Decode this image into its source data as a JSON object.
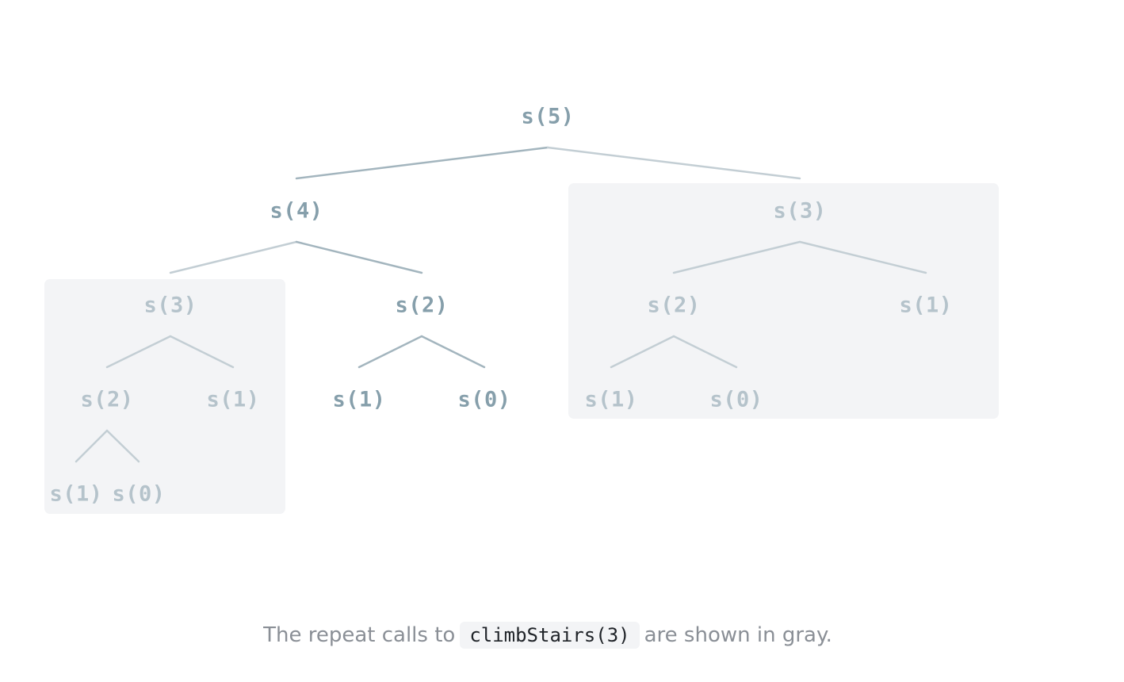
{
  "tree": {
    "nodes": [
      {
        "id": "n5",
        "label": "s(5)",
        "repeat": false
      },
      {
        "id": "n4",
        "label": "s(4)",
        "repeat": false
      },
      {
        "id": "n3r",
        "label": "s(3)",
        "repeat": true
      },
      {
        "id": "n3l",
        "label": "s(3)",
        "repeat": true
      },
      {
        "id": "n2m",
        "label": "s(2)",
        "repeat": false
      },
      {
        "id": "n2r",
        "label": "s(2)",
        "repeat": true
      },
      {
        "id": "n1r",
        "label": "s(1)",
        "repeat": true
      },
      {
        "id": "n2l",
        "label": "s(2)",
        "repeat": true
      },
      {
        "id": "n1l",
        "label": "s(1)",
        "repeat": true
      },
      {
        "id": "n1m",
        "label": "s(1)",
        "repeat": false
      },
      {
        "id": "n0m",
        "label": "s(0)",
        "repeat": false
      },
      {
        "id": "n1rr",
        "label": "s(1)",
        "repeat": true
      },
      {
        "id": "n0rr",
        "label": "s(0)",
        "repeat": true
      },
      {
        "id": "n1ll",
        "label": "s(1)",
        "repeat": true
      },
      {
        "id": "n0ll",
        "label": "s(0)",
        "repeat": true
      }
    ],
    "edges": [
      [
        "n5",
        "n4"
      ],
      [
        "n5",
        "n3r"
      ],
      [
        "n4",
        "n3l"
      ],
      [
        "n4",
        "n2m"
      ],
      [
        "n3r",
        "n2r"
      ],
      [
        "n3r",
        "n1r"
      ],
      [
        "n3l",
        "n2l"
      ],
      [
        "n3l",
        "n1l"
      ],
      [
        "n2m",
        "n1m"
      ],
      [
        "n2m",
        "n0m"
      ],
      [
        "n2r",
        "n1rr"
      ],
      [
        "n2r",
        "n0rr"
      ],
      [
        "n2l",
        "n1ll"
      ],
      [
        "n2l",
        "n0ll"
      ]
    ],
    "highlighted_subtrees": [
      "n3l",
      "n3r"
    ]
  },
  "caption": {
    "before": "The repeat calls to",
    "code": "climbStairs(3)",
    "after": "are shown in gray."
  },
  "colors": {
    "main_node": "#869fab",
    "repeat_node": "#b5c3cb",
    "main_edge": "#a3b5be",
    "repeat_edge": "#c3ced4",
    "highlight_bg": "#f3f4f6",
    "caption_text": "#8a8f96",
    "code_text": "#1f2328"
  }
}
